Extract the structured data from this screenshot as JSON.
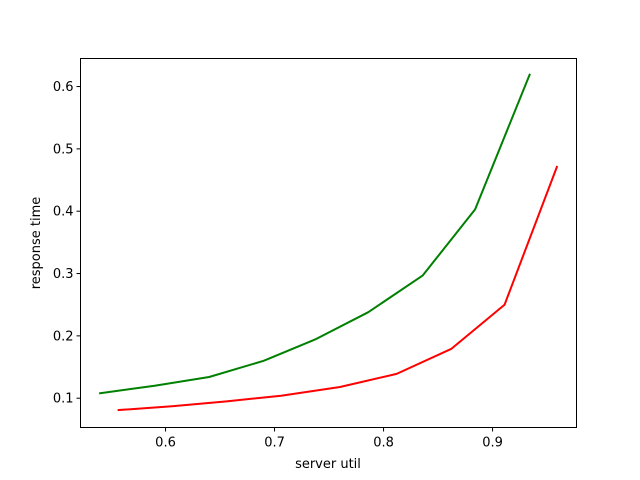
{
  "chart_data": {
    "type": "line",
    "title": "",
    "xlabel": "server util",
    "ylabel": "response time",
    "xlim": [
      0.522,
      0.977
    ],
    "ylim": [
      0.053,
      0.645
    ],
    "xticks": [
      0.6,
      0.7,
      0.8,
      0.9
    ],
    "xtick_labels": [
      "0.6",
      "0.7",
      "0.8",
      "0.9"
    ],
    "yticks": [
      0.1,
      0.2,
      0.3,
      0.4,
      0.5,
      0.6
    ],
    "ytick_labels": [
      "0.1",
      "0.2",
      "0.3",
      "0.4",
      "0.5",
      "0.6"
    ],
    "grid": false,
    "legend": "none",
    "series": [
      {
        "color": "#008000",
        "x": [
          0.54,
          0.59,
          0.64,
          0.69,
          0.737,
          0.786,
          0.836,
          0.884,
          0.934
        ],
        "y": [
          0.108,
          0.12,
          0.134,
          0.16,
          0.194,
          0.238,
          0.297,
          0.403,
          0.619
        ]
      },
      {
        "color": "#ff0000",
        "x": [
          0.557,
          0.606,
          0.656,
          0.706,
          0.76,
          0.812,
          0.862,
          0.911,
          0.959
        ],
        "y": [
          0.081,
          0.087,
          0.095,
          0.104,
          0.118,
          0.139,
          0.179,
          0.25,
          0.471
        ]
      }
    ]
  }
}
